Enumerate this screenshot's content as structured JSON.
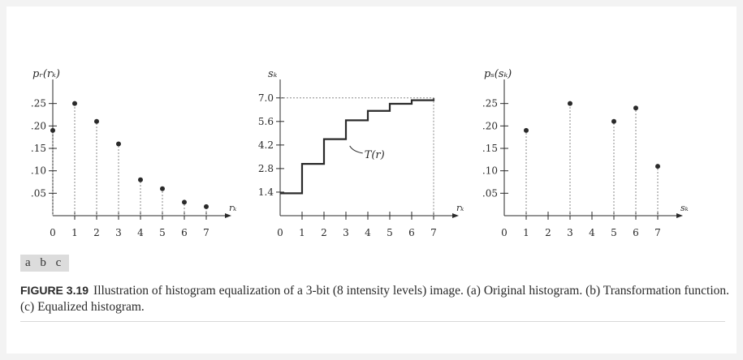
{
  "chart_data": [
    {
      "type": "scatter",
      "style": "stem",
      "panel": "a",
      "ylabel": "p_r(r_k)",
      "ylabel_display": "pᵣ(rₖ)",
      "xlabel": "r_k",
      "xlabel_display": "rₖ",
      "x": [
        0,
        1,
        2,
        3,
        4,
        5,
        6,
        7
      ],
      "values": [
        0.19,
        0.25,
        0.21,
        0.16,
        0.08,
        0.06,
        0.03,
        0.02
      ],
      "xticks": [
        "0",
        "1",
        "2",
        "3",
        "4",
        "5",
        "6",
        "7"
      ],
      "yticks": [
        ".05",
        ".10",
        ".15",
        ".20",
        ".25"
      ],
      "ytick_values": [
        0.05,
        0.1,
        0.15,
        0.2,
        0.25
      ],
      "ylim": [
        0,
        0.3
      ],
      "xlim": [
        0,
        7.5
      ]
    },
    {
      "type": "line",
      "style": "step",
      "panel": "b",
      "ylabel": "s_k",
      "ylabel_display": "sₖ",
      "xlabel": "r_k",
      "xlabel_display": "rₖ",
      "x": [
        0,
        1,
        2,
        3,
        4,
        5,
        6,
        7
      ],
      "values": [
        1.33,
        3.08,
        4.55,
        5.67,
        6.23,
        6.65,
        6.86,
        7.0
      ],
      "xticks": [
        "0",
        "1",
        "2",
        "3",
        "4",
        "5",
        "6",
        "7"
      ],
      "yticks": [
        "1.4",
        "2.8",
        "4.2",
        "5.6",
        "7.0"
      ],
      "ytick_values": [
        1.4,
        2.8,
        4.2,
        5.6,
        7.0
      ],
      "ylim": [
        0,
        8.0
      ],
      "xlim": [
        0,
        7.5
      ],
      "annotation": "T(r)"
    },
    {
      "type": "scatter",
      "style": "stem",
      "panel": "c",
      "ylabel": "p_s(s_k)",
      "ylabel_display": "pₛ(sₖ)",
      "xlabel": "s_k",
      "xlabel_display": "sₖ",
      "x": [
        1,
        3,
        5,
        6,
        7
      ],
      "values": [
        0.19,
        0.25,
        0.21,
        0.24,
        0.11
      ],
      "xticks": [
        "0",
        "1",
        "2",
        "3",
        "4",
        "5",
        "6",
        "7"
      ],
      "yticks": [
        ".05",
        ".10",
        ".15",
        ".20",
        ".25"
      ],
      "ytick_values": [
        0.05,
        0.1,
        0.15,
        0.2,
        0.25
      ],
      "ylim": [
        0,
        0.3
      ],
      "xlim": [
        0,
        7.5
      ]
    }
  ],
  "panel_tags": "a b c",
  "caption": {
    "figure_id": "FIGURE 3.19",
    "text": "Illustration of histogram equalization of a 3-bit (8 intensity levels) image. (a) Original histogram. (b) Transformation function. (c) Equalized histogram."
  },
  "colors": {
    "ink": "#2a2a2a",
    "dotted": "#8a8a8a",
    "tag_bg": "#dcdcdc"
  }
}
